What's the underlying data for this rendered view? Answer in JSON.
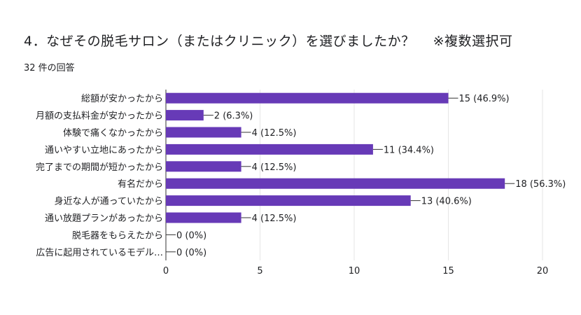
{
  "header": {
    "question": "4．なぜその脱毛サロン（またはクリニック）を選びましたか？",
    "note": "※複数選択可",
    "response_count": "32 件の回答"
  },
  "colors": {
    "bar": "#673ab7",
    "grid": "#e6e6e6",
    "axis": "#333333",
    "text": "#202124"
  },
  "chart_data": {
    "type": "bar",
    "orientation": "horizontal",
    "categories": [
      "総額が安かったから",
      "月額の支払料金が安かったから",
      "体験で痛くなかったから",
      "通いやすい立地にあったから",
      "完了までの期間が短かったから",
      "有名だから",
      "身近な人が通っていたから",
      "通い放題プランがあったから",
      "脱毛器をもらえたから",
      "広告に起用されているモデル…"
    ],
    "values": [
      15,
      2,
      4,
      11,
      4,
      18,
      13,
      4,
      0,
      0
    ],
    "data_labels": [
      "15 (46.9%)",
      "2 (6.3%)",
      "4 (12.5%)",
      "11 (34.4%)",
      "4 (12.5%)",
      "18 (56.3%)",
      "13 (40.6%)",
      "4 (12.5%)",
      "0 (0%)",
      "0 (0%)"
    ],
    "xlim": [
      0,
      20
    ],
    "xticks": [
      0,
      5,
      10,
      15,
      20
    ],
    "grid": true
  }
}
